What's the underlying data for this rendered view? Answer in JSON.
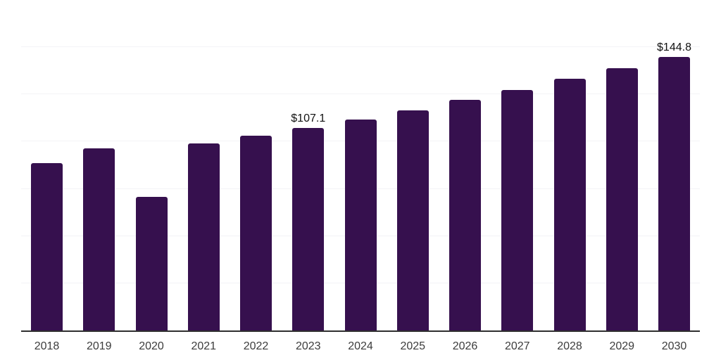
{
  "chart_data": {
    "type": "bar",
    "categories": [
      "2018",
      "2019",
      "2020",
      "2021",
      "2022",
      "2023",
      "2024",
      "2025",
      "2026",
      "2027",
      "2028",
      "2029",
      "2030"
    ],
    "values": [
      88.5,
      96.3,
      70.9,
      98.9,
      103.0,
      107.1,
      111.6,
      116.7,
      122.1,
      127.3,
      133.3,
      139.0,
      144.8
    ],
    "annotations": [
      {
        "category": "2023",
        "text": "$107.1"
      },
      {
        "category": "2030",
        "text": "$144.8"
      }
    ],
    "title": "",
    "xlabel": "",
    "ylabel": "",
    "ylim": [
      0,
      175
    ],
    "gridline_step": 25,
    "grid": true,
    "legend": false,
    "y_tick_labels_visible": false,
    "bar_color": "#36104e",
    "gridline_color": "#f3f3f6",
    "axis_line_color": "#2e2e2e",
    "value_label_color": "#111111",
    "tick_label_color": "#3c3c3c"
  }
}
